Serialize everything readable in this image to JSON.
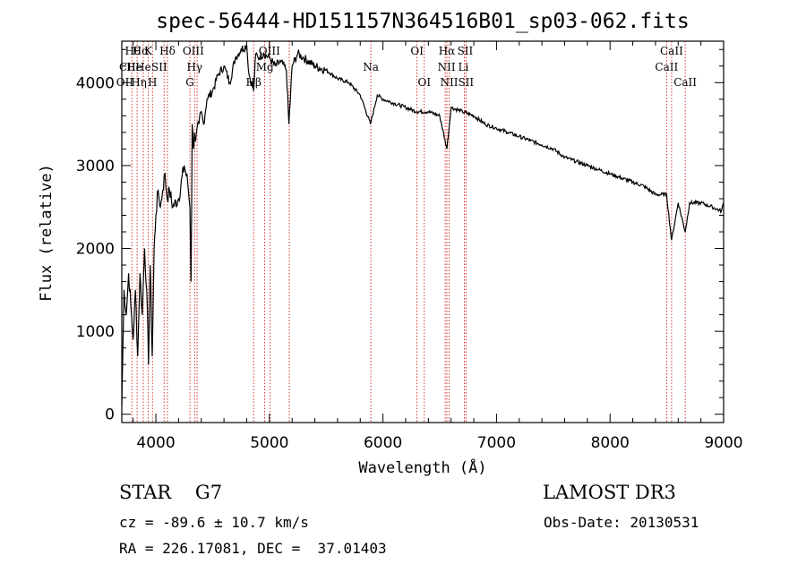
{
  "chart_data": {
    "type": "line",
    "title": "spec-56444-HD151157N364516B01_sp03-062.fits",
    "xlabel": "Wavelength (Å)",
    "ylabel": "Flux (relative)",
    "xlim": [
      3700,
      9000
    ],
    "ylim": [
      -100,
      4500
    ],
    "xticks": [
      4000,
      5000,
      6000,
      7000,
      8000,
      9000
    ],
    "yticks": [
      0,
      1000,
      2000,
      3000,
      4000
    ],
    "series": [
      {
        "name": "spectrum",
        "x": [
          3700,
          3720,
          3740,
          3760,
          3780,
          3800,
          3820,
          3840,
          3860,
          3880,
          3900,
          3920,
          3935,
          3950,
          3968,
          3985,
          4000,
          4020,
          4040,
          4060,
          4080,
          4100,
          4120,
          4150,
          4200,
          4250,
          4280,
          4300,
          4310,
          4320,
          4330,
          4340,
          4350,
          4380,
          4400,
          4420,
          4450,
          4500,
          4550,
          4600,
          4650,
          4700,
          4750,
          4800,
          4820,
          4861,
          4880,
          4900,
          4950,
          5000,
          5050,
          5100,
          5150,
          5172,
          5200,
          5250,
          5300,
          5400,
          5500,
          5600,
          5700,
          5800,
          5890,
          5950,
          6000,
          6100,
          6200,
          6300,
          6400,
          6500,
          6563,
          6600,
          6700,
          6800,
          6900,
          7000,
          7100,
          7200,
          7300,
          7400,
          7500,
          7600,
          7700,
          7800,
          7900,
          8000,
          8100,
          8200,
          8300,
          8400,
          8498,
          8542,
          8600,
          8662,
          8700,
          8800,
          8900,
          8980,
          9000
        ],
        "y": [
          100,
          1500,
          1200,
          1700,
          1300,
          900,
          1500,
          700,
          1700,
          1200,
          2000,
          1500,
          600,
          1800,
          700,
          2000,
          2400,
          2700,
          2500,
          2700,
          2900,
          2600,
          2700,
          2500,
          2600,
          3000,
          2800,
          2500,
          1600,
          3500,
          3200,
          3400,
          3300,
          3500,
          3650,
          3500,
          3800,
          3900,
          4100,
          4200,
          4000,
          4300,
          4400,
          4450,
          4100,
          3900,
          4350,
          4300,
          4350,
          4300,
          4200,
          4250,
          4150,
          3500,
          4200,
          4350,
          4300,
          4200,
          4150,
          4050,
          4000,
          3850,
          3500,
          3850,
          3800,
          3750,
          3700,
          3650,
          3650,
          3600,
          3200,
          3700,
          3650,
          3600,
          3500,
          3450,
          3400,
          3350,
          3300,
          3250,
          3200,
          3100,
          3050,
          3000,
          2950,
          2900,
          2850,
          2800,
          2750,
          2650,
          2650,
          2100,
          2550,
          2200,
          2550,
          2550,
          2500,
          2450,
          2550
        ]
      }
    ],
    "line_markers": [
      {
        "name": "HEpsilon-CaII-H",
        "x": 3788
      },
      {
        "name": "CaII-K",
        "x": 3934
      },
      {
        "name": "HeI",
        "x": 3889
      },
      {
        "name": "HEta",
        "x": 3835
      },
      {
        "name": "H",
        "x": 3970
      },
      {
        "name": "SII",
        "x": 4072
      },
      {
        "name": "HDelta",
        "x": 4102
      },
      {
        "name": "OIII-G",
        "x": 4300
      },
      {
        "name": "HGamma",
        "x": 4341
      },
      {
        "name": "OIII",
        "x": 4363
      },
      {
        "name": "HBeta",
        "x": 4861
      },
      {
        "name": "OIII-a",
        "x": 4959
      },
      {
        "name": "OIII-b",
        "x": 5007
      },
      {
        "name": "Mg",
        "x": 5175
      },
      {
        "name": "Na",
        "x": 5893
      },
      {
        "name": "OI-a",
        "x": 6300
      },
      {
        "name": "OI-b",
        "x": 6364
      },
      {
        "name": "NII-a",
        "x": 6548
      },
      {
        "name": "HAlpha",
        "x": 6563
      },
      {
        "name": "NII-b",
        "x": 6583
      },
      {
        "name": "SII-a",
        "x": 6716
      },
      {
        "name": "SII-b",
        "x": 6731
      },
      {
        "name": "CaII-a",
        "x": 8498
      },
      {
        "name": "CaII-b",
        "x": 8542
      },
      {
        "name": "CaII-c",
        "x": 8662
      }
    ],
    "line_labels": [
      {
        "text": "Hθ",
        "x": 3797,
        "row": 0
      },
      {
        "text": "Hα",
        "x": 3865,
        "row": 0
      },
      {
        "text": "K",
        "x": 3934,
        "row": 0
      },
      {
        "text": "Hδ",
        "x": 4102,
        "row": 0
      },
      {
        "text": "OIII",
        "x": 4330,
        "row": 0
      },
      {
        "text": "OIII",
        "x": 5000,
        "row": 0
      },
      {
        "text": "OI",
        "x": 6300,
        "row": 0
      },
      {
        "text": "Hα",
        "x": 6563,
        "row": 0
      },
      {
        "text": "SII",
        "x": 6724,
        "row": 0
      },
      {
        "text": "CaII",
        "x": 8542,
        "row": 0
      },
      {
        "text": "CII",
        "x": 3750,
        "row": 1
      },
      {
        "text": "He",
        "x": 3810,
        "row": 1
      },
      {
        "text": "He",
        "x": 3889,
        "row": 1
      },
      {
        "text": "SII",
        "x": 4030,
        "row": 1
      },
      {
        "text": "Hγ",
        "x": 4341,
        "row": 1
      },
      {
        "text": "Mg",
        "x": 4960,
        "row": 1
      },
      {
        "text": "Na",
        "x": 5893,
        "row": 1
      },
      {
        "text": "NII",
        "x": 6560,
        "row": 1
      },
      {
        "text": "Li",
        "x": 6708,
        "row": 1
      },
      {
        "text": "CaII",
        "x": 8498,
        "row": 1
      },
      {
        "text": "OII",
        "x": 3727,
        "row": 2
      },
      {
        "text": "Hη",
        "x": 3850,
        "row": 2
      },
      {
        "text": "H",
        "x": 3970,
        "row": 2
      },
      {
        "text": "G",
        "x": 4300,
        "row": 2
      },
      {
        "text": "Hβ",
        "x": 4861,
        "row": 2
      },
      {
        "text": "OI",
        "x": 6364,
        "row": 2
      },
      {
        "text": "NII",
        "x": 6583,
        "row": 2
      },
      {
        "text": "SII",
        "x": 6731,
        "row": 2
      },
      {
        "text": "CaII",
        "x": 8662,
        "row": 2
      }
    ]
  },
  "info": {
    "star": "STAR    G7",
    "survey": "LAMOST DR3",
    "cz": "cz = -89.6 ± 10.7 km/s",
    "obs_date": "Obs-Date: 20130531",
    "radec": "RA = 226.17081, DEC =  37.01403"
  },
  "colors": {
    "spectrum": "#000000",
    "marker": "#cc0000"
  }
}
